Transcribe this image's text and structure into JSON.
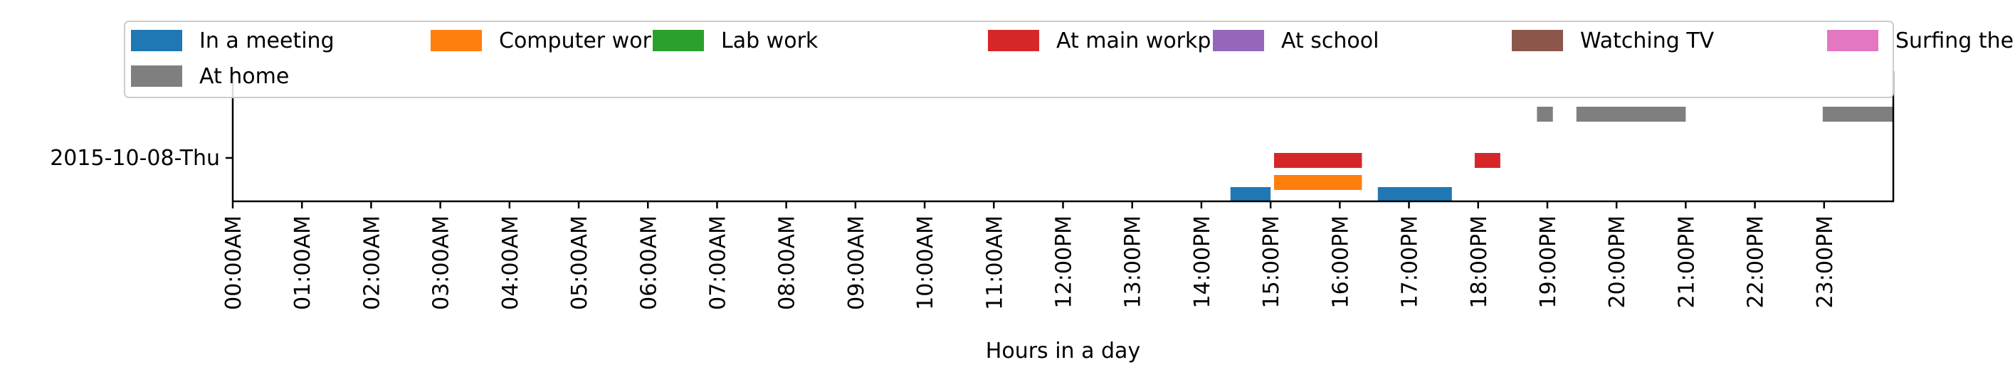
{
  "chart_data": {
    "type": "bar",
    "orientation": "horizontal-timeline",
    "title": "",
    "xlabel": "Hours in a day",
    "ylabel": "",
    "y_categories": [
      "2015-10-08-Thu"
    ],
    "xlim": [
      0,
      24
    ],
    "x_tick_labels": [
      "00:00AM",
      "01:00AM",
      "02:00AM",
      "03:00AM",
      "04:00AM",
      "05:00AM",
      "06:00AM",
      "07:00AM",
      "08:00AM",
      "09:00AM",
      "10:00AM",
      "11:00AM",
      "12:00PM",
      "13:00PM",
      "14:00PM",
      "15:00PM",
      "16:00PM",
      "17:00PM",
      "18:00PM",
      "19:00PM",
      "20:00PM",
      "21:00PM",
      "22:00PM",
      "23:00PM"
    ],
    "grid": false,
    "legend": {
      "position": "top",
      "columns": 7
    },
    "series": [
      {
        "name": "In a meeting",
        "color": "#1f77b4",
        "lane": 0,
        "intervals": [
          [
            14.42,
            15.0
          ],
          [
            16.55,
            17.62
          ]
        ]
      },
      {
        "name": "Computer work",
        "color": "#ff7f0e",
        "lane": 1,
        "intervals": [
          [
            15.05,
            16.32
          ]
        ]
      },
      {
        "name": "Lab work",
        "color": "#2ca02c",
        "lane": 2,
        "intervals": []
      },
      {
        "name": "At main workplace",
        "color": "#d62728",
        "lane": 3,
        "intervals": [
          [
            15.05,
            16.32
          ],
          [
            17.95,
            18.32
          ]
        ]
      },
      {
        "name": "At school",
        "color": "#9467bd",
        "lane": 4,
        "intervals": []
      },
      {
        "name": "Watching TV",
        "color": "#8c564b",
        "lane": 5,
        "intervals": []
      },
      {
        "name": "Surfing the internet",
        "color": "#e377c2",
        "lane": 6,
        "intervals": []
      },
      {
        "name": "At home",
        "color": "#7f7f7f",
        "lane": 7,
        "intervals": [
          [
            18.85,
            19.08
          ],
          [
            19.42,
            21.0
          ],
          [
            22.98,
            24.0
          ]
        ]
      }
    ]
  }
}
